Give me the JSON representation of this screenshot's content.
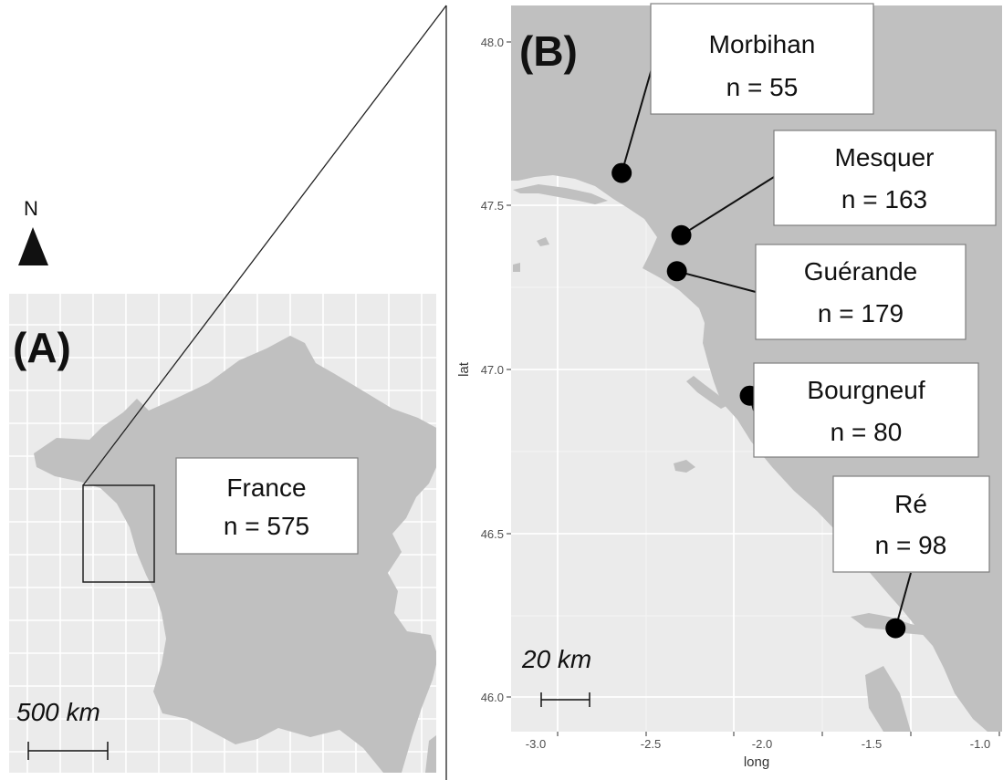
{
  "panel_a": {
    "label": "(A)",
    "north_label": "N",
    "country_box": {
      "name": "France",
      "count": "n = 575"
    },
    "scale_bar": "500 km"
  },
  "panel_b": {
    "label": "(B)",
    "scale_bar": "20 km",
    "x_axis": {
      "title": "long",
      "ticks": [
        "-3.0",
        "-2.5",
        "-2.0",
        "-1.5",
        "-1.0"
      ]
    },
    "y_axis": {
      "title": "lat",
      "ticks": [
        "48.0",
        "47.5",
        "47.0",
        "46.5",
        "46.0"
      ]
    },
    "sites": [
      {
        "name": "Morbihan",
        "count": "n = 55",
        "long": -2.71,
        "lat": 47.6
      },
      {
        "name": "Mesquer",
        "count": "n = 163",
        "long": -2.44,
        "lat": 47.41
      },
      {
        "name": "Guérande",
        "count": "n = 179",
        "long": -2.46,
        "lat": 47.3
      },
      {
        "name": "Bourgneuf",
        "count": "n = 80",
        "long": -2.13,
        "lat": 46.92
      },
      {
        "name": "Ré",
        "count": "n = 98",
        "long": -1.47,
        "lat": 46.21
      }
    ]
  },
  "colors": {
    "land": "#c0c0c0",
    "sea": "#ebebeb",
    "grid": "#ffffff",
    "point": "#000000"
  }
}
